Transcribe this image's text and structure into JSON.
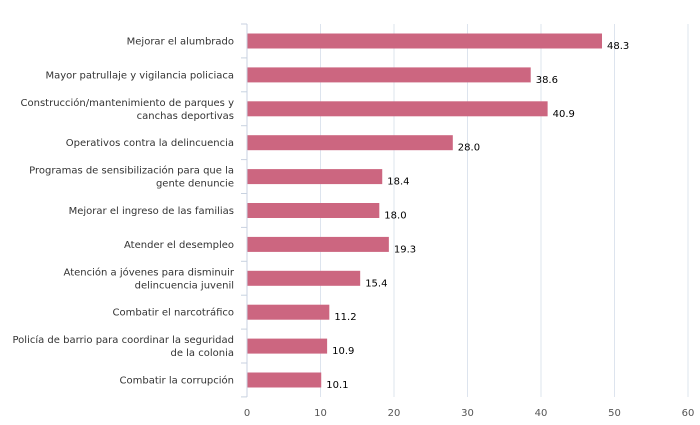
{
  "chart_data": {
    "type": "bar",
    "orientation": "horizontal",
    "categories": [
      [
        "Mejorar el alumbrado"
      ],
      [
        "Mayor patrullaje y vigilancia policiaca"
      ],
      [
        "Construcción/mantenimiento de parques y",
        "canchas deportivas"
      ],
      [
        "Operativos contra la delincuencia"
      ],
      [
        "Programas de sensibilización para que la",
        "gente denuncie"
      ],
      [
        "Mejorar el ingreso de las familias"
      ],
      [
        "Atender el desempleo"
      ],
      [
        "Atención a jóvenes para disminuir",
        "delincuencia juvenil"
      ],
      [
        "Combatir el narcotráfico"
      ],
      [
        "Policía de barrio para coordinar la seguridad",
        "de la colonia"
      ],
      [
        "Combatir la corrupción"
      ]
    ],
    "values": [
      48.3,
      38.6,
      40.9,
      28.0,
      18.4,
      18.0,
      19.3,
      15.4,
      11.2,
      10.9,
      10.1
    ],
    "value_labels": [
      "48.3",
      "38.6",
      "40.9",
      "28.0",
      "18.4",
      "18.0",
      "19.3",
      "15.4",
      "11.2",
      "10.9",
      "10.1"
    ],
    "xticks": [
      "0",
      "10",
      "20",
      "30",
      "40",
      "50",
      "60"
    ],
    "xlim": [
      0,
      60
    ],
    "grid": true,
    "title": "",
    "xlabel": "",
    "ylabel": "",
    "bar_color": "#cc6680",
    "grid_color": "#dde4ee",
    "axis_color": "#c8d2e0"
  }
}
